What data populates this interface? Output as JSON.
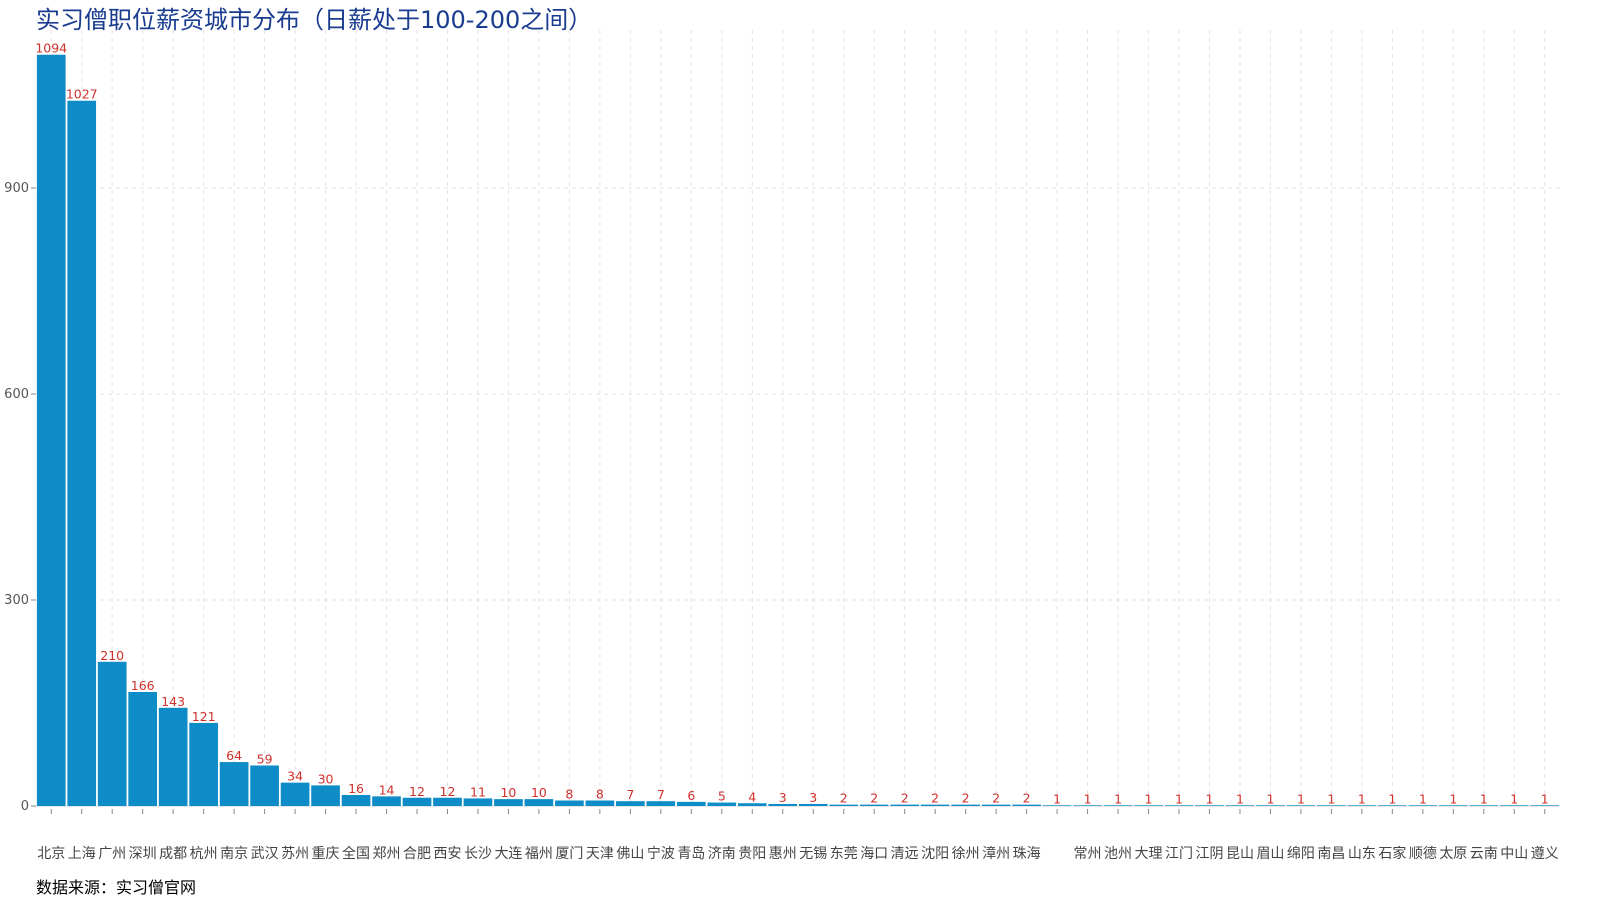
{
  "title": "实习僧职位薪资城市分布（日薪处于100-200之间）",
  "source_note": "数据来源：实习僧官网",
  "colors": {
    "bar": "#0e8cc8",
    "data_label": "#d0312d",
    "title": "#1a3c8f",
    "grid": "#e3e3e3"
  },
  "chart_data": {
    "type": "bar",
    "title": "实习僧职位薪资城市分布（日薪处于100-200之间）",
    "xlabel": "",
    "ylabel": "",
    "ylim": [
      0,
      1130
    ],
    "yticks": [
      0,
      300,
      600,
      900
    ],
    "grid": true,
    "categories": [
      "北京",
      "上海",
      "广州",
      "深圳",
      "成都",
      "杭州",
      "南京",
      "武汉",
      "苏州",
      "重庆",
      "全国",
      "郑州",
      "合肥",
      "西安",
      "长沙",
      "大连",
      "福州",
      "厦门",
      "天津",
      "佛山",
      "宁波",
      "青岛",
      "济南",
      "贵阳",
      "惠州",
      "无锡",
      "东莞",
      "海口",
      "清远",
      "沈阳",
      "徐州",
      "漳州",
      "珠海",
      "",
      "常州",
      "池州",
      "大理",
      "江门",
      "江阴",
      "昆山",
      "眉山",
      "绵阳",
      "南昌",
      "山东",
      "石家",
      "顺德",
      "太原",
      "云南",
      "中山",
      "遵义"
    ],
    "values": [
      1094,
      1027,
      210,
      166,
      143,
      121,
      64,
      59,
      34,
      30,
      16,
      14,
      12,
      12,
      11,
      10,
      10,
      8,
      8,
      7,
      7,
      6,
      5,
      4,
      3,
      3,
      2,
      2,
      2,
      2,
      2,
      2,
      2,
      1,
      1,
      1,
      1,
      1,
      1,
      1,
      1,
      1,
      1,
      1,
      1,
      1,
      1,
      1,
      1,
      1
    ]
  }
}
